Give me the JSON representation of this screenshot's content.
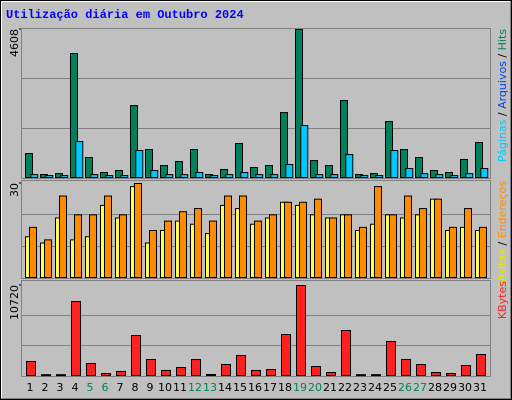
{
  "chart_data": [
    {
      "type": "bar",
      "title": "Utilização diária em Outubro 2024",
      "ylim": [
        0,
        4608
      ],
      "yticks": [
        4608
      ],
      "series": [
        {
          "name": "Hits",
          "color": "#00805c",
          "values": [
            747,
            93,
            124,
            3860,
            622,
            156,
            218,
            2240,
            871,
            373,
            498,
            871,
            93,
            249,
            1058,
            311,
            373,
            2022,
            4608,
            529,
            373,
            2396,
            93,
            124,
            1742,
            871,
            622,
            218,
            156,
            560,
            1090
          ]
        },
        {
          "name": "Arquivos",
          "color": "#0040ff",
          "values": [
            null,
            null,
            null,
            null,
            null,
            null,
            null,
            null,
            null,
            null,
            null,
            null,
            null,
            null,
            null,
            null,
            null,
            null,
            null,
            null,
            null,
            null,
            null,
            null,
            null,
            null,
            null,
            null,
            null,
            null,
            null
          ]
        },
        {
          "name": "Páginas",
          "color": "#00c8ff",
          "values": [
            90,
            60,
            60,
            1120,
            90,
            60,
            60,
            840,
            218,
            90,
            90,
            156,
            60,
            90,
            156,
            90,
            90,
            404,
            1618,
            90,
            90,
            716,
            60,
            60,
            840,
            280,
            120,
            90,
            60,
            120,
            280
          ]
        }
      ]
    },
    {
      "type": "bar",
      "ylim": [
        0,
        30
      ],
      "yticks": [
        30
      ],
      "series": [
        {
          "name": "Visitas",
          "color": "#ffff50",
          "values": [
            13,
            11,
            19,
            12,
            13,
            23,
            19,
            29,
            11,
            15,
            18,
            17,
            14,
            23,
            22,
            17,
            19,
            24,
            23,
            20,
            19,
            20,
            15,
            17,
            20,
            19,
            20,
            25,
            15,
            16,
            15
          ]
        },
        {
          "name": "Endereços",
          "color": "#ff8c00",
          "values": [
            16,
            12,
            26,
            20,
            20,
            26,
            20,
            30,
            15,
            18,
            21,
            22,
            18,
            26,
            26,
            18,
            20,
            24,
            24,
            25,
            19,
            20,
            16,
            29,
            20,
            26,
            22,
            25,
            16,
            22,
            16
          ]
        }
      ]
    },
    {
      "type": "bar",
      "ylim": [
        0,
        10720
      ],
      "yticks": [
        10720
      ],
      "categories": [
        "1",
        "2",
        "3",
        "4",
        "5",
        "6",
        "7",
        "8",
        "9",
        "10",
        "11",
        "12",
        "13",
        "14",
        "15",
        "16",
        "17",
        "18",
        "19",
        "20",
        "21",
        "22",
        "23",
        "24",
        "25",
        "26",
        "27",
        "28",
        "29",
        "30",
        "31"
      ],
      "category_colors": [
        "#000",
        "#000",
        "#000",
        "#000",
        "#00805c",
        "#00805c",
        "#000",
        "#000",
        "#000",
        "#000",
        "#000",
        "#00805c",
        "#00805c",
        "#000",
        "#000",
        "#000",
        "#000",
        "#000",
        "#00805c",
        "#00805c",
        "#000",
        "#000",
        "#000",
        "#000",
        "#000",
        "#00805c",
        "#00805c",
        "#000",
        "#000",
        "#000",
        "#000"
      ],
      "series": [
        {
          "name": "KBytes",
          "color": "#ff2020",
          "values": [
            1670,
            100,
            100,
            8810,
            1430,
            240,
            480,
            4760,
            1900,
            600,
            950,
            1900,
            120,
            1310,
            2380,
            600,
            710,
            4880,
            10720,
            1070,
            360,
            5360,
            100,
            100,
            4050,
            1900,
            1310,
            360,
            240,
            1190,
            2500
          ]
        }
      ]
    }
  ]
}
